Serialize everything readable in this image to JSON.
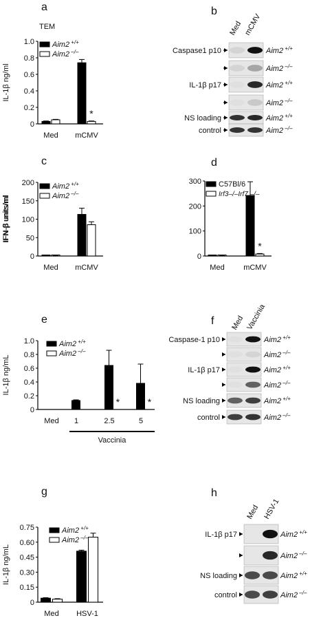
{
  "chart_data": [
    {
      "panel": "a",
      "type": "bar",
      "title": "TEM",
      "ylabel": "IL-1β ng/ml",
      "categories": [
        "Med",
        "mCMV"
      ],
      "ylim": [
        0,
        1.0
      ],
      "yticks": [
        "0",
        "0.2",
        "0.4",
        "0.6",
        "0.8",
        "1.0"
      ],
      "series": [
        {
          "name": "Aim2 +/+",
          "values": [
            0.03,
            0.74
          ],
          "errors": [
            0.005,
            0.04
          ],
          "fill": "#000000"
        },
        {
          "name": "Aim2 –/–",
          "values": [
            0.05,
            0.03
          ],
          "errors": [
            0.005,
            0.005
          ],
          "fill": "#ffffff"
        }
      ],
      "annotations": [
        {
          "category": 1,
          "series": 1,
          "text": "*"
        }
      ],
      "legend": "top-left"
    },
    {
      "panel": "c",
      "type": "bar",
      "ylabel": "IFN-β units/ml",
      "categories": [
        "Med",
        "mCMV"
      ],
      "ylim": [
        0,
        200
      ],
      "yticks": [
        "0",
        "50",
        "100",
        "150",
        "200"
      ],
      "series": [
        {
          "name": "Aim2 +/+",
          "values": [
            1,
            113
          ],
          "errors": [
            0.5,
            17
          ],
          "fill": "#000000"
        },
        {
          "name": "Aim2 –/–",
          "values": [
            1,
            85
          ],
          "errors": [
            0.5,
            8
          ],
          "fill": "#ffffff"
        }
      ],
      "annotations": [],
      "legend": "top-left"
    },
    {
      "panel": "d",
      "type": "bar",
      "ylabel": "IFN-β units/ml",
      "categories": [
        "Med",
        "mCMV"
      ],
      "ylim": [
        0,
        300
      ],
      "yticks": [
        "0",
        "100",
        "200",
        "300"
      ],
      "series": [
        {
          "name": "C57Bl/6",
          "values": [
            2,
            242
          ],
          "errors": [
            1,
            55
          ],
          "fill": "#000000"
        },
        {
          "name": "Irf3–/–Irf7 –/–",
          "values": [
            1,
            8
          ],
          "errors": [
            0.5,
            2
          ],
          "fill": "#ffffff"
        }
      ],
      "annotations": [
        {
          "category": 1,
          "series": 1,
          "text": "*"
        }
      ],
      "legend": "top-left"
    },
    {
      "panel": "e",
      "type": "bar",
      "ylabel": "IL-1β ng/mL",
      "categories": [
        "Med",
        "1",
        "2.5",
        "5"
      ],
      "group_label": "Vaccinia",
      "ylim": [
        0,
        1.0
      ],
      "yticks": [
        "0",
        "0.2",
        "0.4",
        "0.6",
        "0.8",
        "1.0"
      ],
      "series": [
        {
          "name": "Aim2 +/+",
          "values": [
            0,
            0.13,
            0.64,
            0.38
          ],
          "errors": [
            0,
            0.01,
            0.22,
            0.28
          ],
          "fill": "#000000"
        },
        {
          "name": "Aim2 –/–",
          "values": [
            0,
            0,
            0,
            0
          ],
          "errors": [
            0,
            0,
            0,
            0
          ],
          "fill": "#ffffff"
        }
      ],
      "annotations": [
        {
          "category": 2,
          "series": 1,
          "text": "*"
        },
        {
          "category": 3,
          "series": 1,
          "text": "*"
        }
      ],
      "legend": "top-left"
    },
    {
      "panel": "g",
      "type": "bar",
      "ylabel": "IL-1β ng/mL",
      "categories": [
        "Med",
        "HSV-1"
      ],
      "ylim": [
        0,
        0.75
      ],
      "yticks": [
        "0",
        "0.15",
        "0.30",
        "0.45",
        "0.60",
        "0.75"
      ],
      "series": [
        {
          "name": "Aim2 +/+",
          "values": [
            0.04,
            0.51
          ],
          "errors": [
            0.005,
            0.01
          ],
          "fill": "#000000"
        },
        {
          "name": "Aim2 –/–",
          "values": [
            0.03,
            0.65
          ],
          "errors": [
            0.005,
            0.04
          ],
          "fill": "#ffffff"
        }
      ],
      "annotations": [],
      "legend": "top-left"
    }
  ],
  "panels": {
    "a": "a",
    "b": "b",
    "c": "c",
    "d": "d",
    "e": "e",
    "f": "f",
    "g": "g",
    "h": "h"
  },
  "blots": {
    "b": {
      "cols": [
        "Med",
        "mCMV"
      ],
      "rows": [
        {
          "label": "Caspase1 p10",
          "geno": "Aim2 +/+"
        },
        {
          "label": "",
          "geno": "Aim2 –/–"
        },
        {
          "label": "IL-1β p17",
          "geno": "Aim2 +/+"
        },
        {
          "label": "",
          "geno": "Aim2 –/–"
        },
        {
          "label": "NS loading",
          "geno": "Aim2 +/+"
        },
        {
          "label": "control",
          "geno": "Aim2 –/–"
        }
      ]
    },
    "f": {
      "cols": [
        "Med",
        "Vaccinia"
      ],
      "rows": [
        {
          "label": "Caspase-1 p10",
          "geno": "Aim2 +/+"
        },
        {
          "label": "",
          "geno": "Aim2 –/–"
        },
        {
          "label": "IL-1β p17",
          "geno": "Aim2 +/+"
        },
        {
          "label": "",
          "geno": "Aim2 –/–"
        },
        {
          "label": "NS loading",
          "geno": "Aim2 +/+"
        },
        {
          "label": "control",
          "geno": "Aim2 –/–"
        }
      ]
    },
    "h": {
      "cols": [
        "Med",
        "HSV-1"
      ],
      "rows": [
        {
          "label": "IL-1β p17",
          "geno": "Aim2 +/+"
        },
        {
          "label": "",
          "geno": "Aim2 –/–"
        },
        {
          "label": "NS loading",
          "geno": "Aim2 +/+"
        },
        {
          "label": "control",
          "geno": "Aim2 –/–"
        }
      ]
    }
  }
}
